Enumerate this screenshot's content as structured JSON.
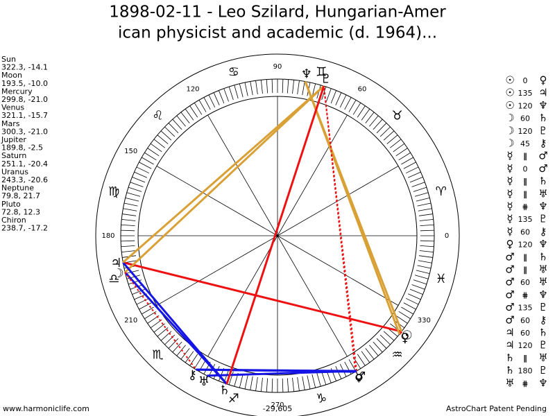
{
  "header": {
    "title_lines": [
      "1898-02-11 - Leo Szilard, Hungarian-Amer",
      "ican physicist and academic (d. 1964)..."
    ]
  },
  "planets": [
    {
      "name": "Sun",
      "position": "322.3, -14.1",
      "glyph": "☉"
    },
    {
      "name": "Moon",
      "position": "193.5, -10.0",
      "glyph": "☽"
    },
    {
      "name": "Mercury",
      "position": "299.8, -21.0",
      "glyph": "☿"
    },
    {
      "name": "Venus",
      "position": "321.1, -15.7",
      "glyph": "♀"
    },
    {
      "name": "Mars",
      "position": "300.3, -21.0",
      "glyph": "♂"
    },
    {
      "name": "Jupiter",
      "position": "189.8, -2.5",
      "glyph": "♃"
    },
    {
      "name": "Saturn",
      "position": "251.1, -20.4",
      "glyph": "♄"
    },
    {
      "name": "Uranus",
      "position": "243.3, -20.6",
      "glyph": "♅"
    },
    {
      "name": "Neptune",
      "position": "79.8, 21.7",
      "glyph": "♆"
    },
    {
      "name": "Pluto",
      "position": "72.8, 12.3",
      "glyph": "♇"
    },
    {
      "name": "Chiron",
      "position": "238.7, -17.2",
      "glyph": "⚷"
    }
  ],
  "aspects": [
    {
      "from": 0,
      "symbol": "0",
      "to": 3,
      "color": "#ee1111"
    },
    {
      "from": 0,
      "symbol": "135",
      "to": 5,
      "color": "#ee1111"
    },
    {
      "from": 0,
      "symbol": "120",
      "to": 8,
      "color": "#d9a035"
    },
    {
      "from": 1,
      "symbol": "60",
      "to": 6,
      "color": "#1515e6"
    },
    {
      "from": 1,
      "symbol": "120",
      "to": 9,
      "color": "#d9a035"
    },
    {
      "from": 1,
      "symbol": "45",
      "to": 10,
      "color": "#ee1111",
      "dashed": true
    },
    {
      "from": 2,
      "symbol": "∥",
      "to": 4
    },
    {
      "from": 2,
      "symbol": "0",
      "to": 4,
      "color": "#ee1111"
    },
    {
      "from": 2,
      "symbol": "∥",
      "to": 6
    },
    {
      "from": 2,
      "symbol": "∥",
      "to": 7
    },
    {
      "from": 2,
      "symbol": "⋕",
      "to": 8
    },
    {
      "from": 2,
      "symbol": "135",
      "to": 9,
      "color": "#ee1111",
      "dashed": true
    },
    {
      "from": 2,
      "symbol": "60",
      "to": 10,
      "color": "#1515e6"
    },
    {
      "from": 3,
      "symbol": "120",
      "to": 8,
      "color": "#d9a035"
    },
    {
      "from": 4,
      "symbol": "∥",
      "to": 6
    },
    {
      "from": 4,
      "symbol": "∥",
      "to": 7
    },
    {
      "from": 4,
      "symbol": "60",
      "to": 7,
      "color": "#1515e6"
    },
    {
      "from": 4,
      "symbol": "⋕",
      "to": 8
    },
    {
      "from": 4,
      "symbol": "135",
      "to": 9,
      "color": "#ee1111",
      "dashed": true
    },
    {
      "from": 4,
      "symbol": "60",
      "to": 10,
      "color": "#1515e6"
    },
    {
      "from": 5,
      "symbol": "60",
      "to": 6,
      "color": "#1515e6"
    },
    {
      "from": 5,
      "symbol": "120",
      "to": 9,
      "color": "#d9a035"
    },
    {
      "from": 6,
      "symbol": "∥",
      "to": 7
    },
    {
      "from": 6,
      "symbol": "180",
      "to": 9,
      "color": "#ee1111"
    },
    {
      "from": 7,
      "symbol": "⋕",
      "to": 8
    }
  ],
  "signs": [
    "♈",
    "♉",
    "♊",
    "♋",
    "♌",
    "♍",
    "♎",
    "♏",
    "♐",
    "♑",
    "♒",
    "♓"
  ],
  "degree_labels": [
    "0",
    "60",
    "90",
    "120",
    "150",
    "180",
    "210",
    "270",
    "330"
  ],
  "footer": {
    "left": "www.harmoniclife.com",
    "center": "-29,605",
    "right": "AstroChart Patent Pending"
  }
}
